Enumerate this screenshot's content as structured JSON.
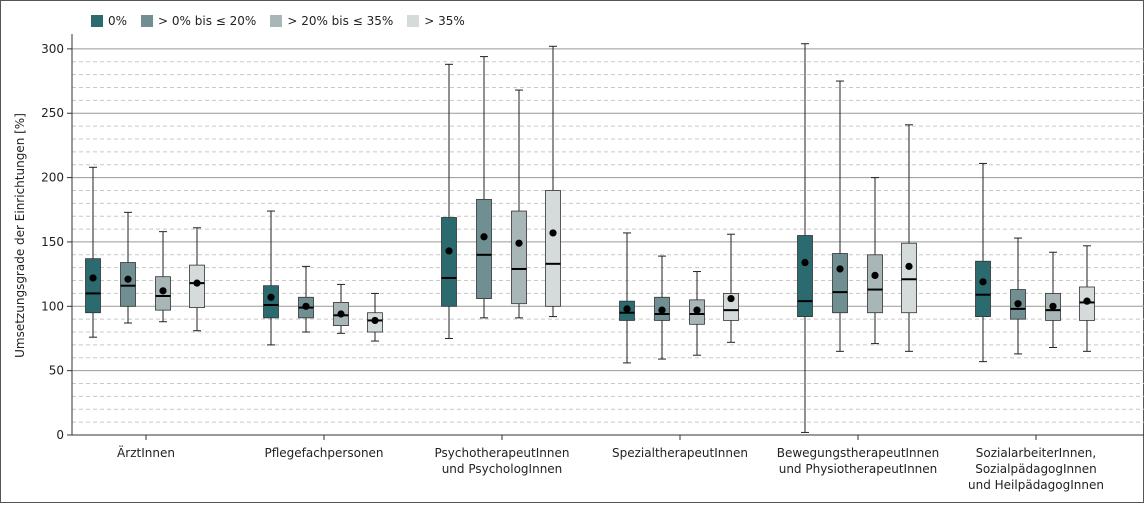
{
  "chart_data": {
    "type": "box",
    "ylabel": "Umsetzungsgrade der Einrichtungen [%]",
    "xlabel": "",
    "ylim": [
      0,
      310
    ],
    "yticks": [
      0,
      50,
      100,
      150,
      200,
      250,
      300
    ],
    "grid": true,
    "legend_position": "top-left",
    "series": [
      {
        "name": "0%",
        "color": "#2b6b6f"
      },
      {
        "name": "> 0% bis ≤ 20%",
        "color": "#6f8f92"
      },
      {
        "name": "> 20% bis ≤ 35%",
        "color": "#a8b6b8"
      },
      {
        "name": "> 35%",
        "color": "#d5dadb"
      }
    ],
    "categories": [
      {
        "label": [
          "ÄrztInnen"
        ],
        "boxes": [
          {
            "min": 76,
            "q1": 95,
            "median": 110,
            "q3": 137,
            "max": 208,
            "mean": 122
          },
          {
            "min": 87,
            "q1": 100,
            "median": 116,
            "q3": 134,
            "max": 173,
            "mean": 121
          },
          {
            "min": 88,
            "q1": 97,
            "median": 108,
            "q3": 123,
            "max": 158,
            "mean": 112
          },
          {
            "min": 81,
            "q1": 99,
            "median": 118,
            "q3": 132,
            "max": 161,
            "mean": 118
          }
        ]
      },
      {
        "label": [
          "Pflegefachpersonen"
        ],
        "boxes": [
          {
            "min": 70,
            "q1": 91,
            "median": 101,
            "q3": 116,
            "max": 174,
            "mean": 107
          },
          {
            "min": 80,
            "q1": 91,
            "median": 99,
            "q3": 107,
            "max": 131,
            "mean": 100
          },
          {
            "min": 79,
            "q1": 85,
            "median": 93,
            "q3": 103,
            "max": 117,
            "mean": 94
          },
          {
            "min": 73,
            "q1": 80,
            "median": 89,
            "q3": 95,
            "max": 110,
            "mean": 89
          }
        ]
      },
      {
        "label": [
          "PsychotherapeutInnen",
          "und PsychologInnen"
        ],
        "boxes": [
          {
            "min": 75,
            "q1": 100,
            "median": 122,
            "q3": 169,
            "max": 288,
            "mean": 143
          },
          {
            "min": 91,
            "q1": 106,
            "median": 140,
            "q3": 183,
            "max": 294,
            "mean": 154
          },
          {
            "min": 91,
            "q1": 102,
            "median": 129,
            "q3": 174,
            "max": 268,
            "mean": 149
          },
          {
            "min": 92,
            "q1": 100,
            "median": 133,
            "q3": 190,
            "max": 302,
            "mean": 157
          }
        ]
      },
      {
        "label": [
          "SpezialtherapeutInnen"
        ],
        "boxes": [
          {
            "min": 56,
            "q1": 89,
            "median": 95,
            "q3": 104,
            "max": 157,
            "mean": 98
          },
          {
            "min": 59,
            "q1": 89,
            "median": 94,
            "q3": 107,
            "max": 139,
            "mean": 97
          },
          {
            "min": 62,
            "q1": 86,
            "median": 94,
            "q3": 105,
            "max": 127,
            "mean": 97
          },
          {
            "min": 72,
            "q1": 89,
            "median": 97,
            "q3": 110,
            "max": 156,
            "mean": 106
          }
        ]
      },
      {
        "label": [
          "BewegungstherapeutInnen",
          "und PhysiotherapeutInnen"
        ],
        "boxes": [
          {
            "min": 2,
            "q1": 92,
            "median": 104,
            "q3": 155,
            "max": 304,
            "mean": 134
          },
          {
            "min": 65,
            "q1": 95,
            "median": 111,
            "q3": 141,
            "max": 275,
            "mean": 129
          },
          {
            "min": 71,
            "q1": 95,
            "median": 113,
            "q3": 140,
            "max": 200,
            "mean": 124
          },
          {
            "min": 65,
            "q1": 95,
            "median": 121,
            "q3": 149,
            "max": 241,
            "mean": 131
          }
        ]
      },
      {
        "label": [
          "SozialarbeiterInnen,",
          "SozialpädagogInnen",
          "und HeilpädagogInnen"
        ],
        "boxes": [
          {
            "min": 57,
            "q1": 92,
            "median": 109,
            "q3": 135,
            "max": 211,
            "mean": 119
          },
          {
            "min": 63,
            "q1": 90,
            "median": 98,
            "q3": 113,
            "max": 153,
            "mean": 102
          },
          {
            "min": 68,
            "q1": 89,
            "median": 97,
            "q3": 110,
            "max": 142,
            "mean": 100
          },
          {
            "min": 65,
            "q1": 89,
            "median": 103,
            "q3": 115,
            "max": 147,
            "mean": 104
          }
        ]
      }
    ]
  }
}
